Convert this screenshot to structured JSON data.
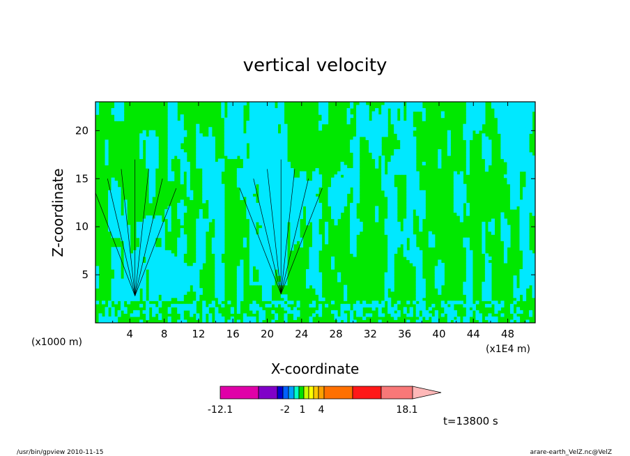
{
  "chart_data": {
    "type": "heatmap",
    "title": "vertical velocity",
    "xlabel": "X-coordinate",
    "ylabel": "Z-coordinate",
    "x_unit_left": "(x1000 m)",
    "x_unit_right": "(x1E4 m)",
    "x_ticks": [
      "4",
      "8",
      "12",
      "16",
      "20",
      "24",
      "28",
      "32",
      "36",
      "40",
      "44",
      "48"
    ],
    "y_ticks": [
      "5",
      "10",
      "15",
      "20"
    ],
    "xlim": [
      0,
      51.2
    ],
    "ylim": [
      0,
      23
    ],
    "colorbar": {
      "labels": [
        "-12.1",
        "-2",
        "1",
        "4",
        "18.1"
      ],
      "colors": [
        "#e000a8",
        "#8000c8",
        "#0000d0",
        "#0060ff",
        "#00a0ff",
        "#00ffc8",
        "#00e000",
        "#c8ff00",
        "#ffff00",
        "#ffc800",
        "#ffa000",
        "#ff7000",
        "#ff1818",
        "#f87878",
        "#ffb8b8"
      ]
    },
    "field_colors": {
      "low": "#00e8ff",
      "high": "#00e800",
      "contour": "#000000"
    },
    "annotation": "t=13800 s"
  },
  "footer": {
    "left": "/usr/bin/gpview  2010-11-15",
    "right": "arare-earth_VelZ.nc@VelZ"
  }
}
